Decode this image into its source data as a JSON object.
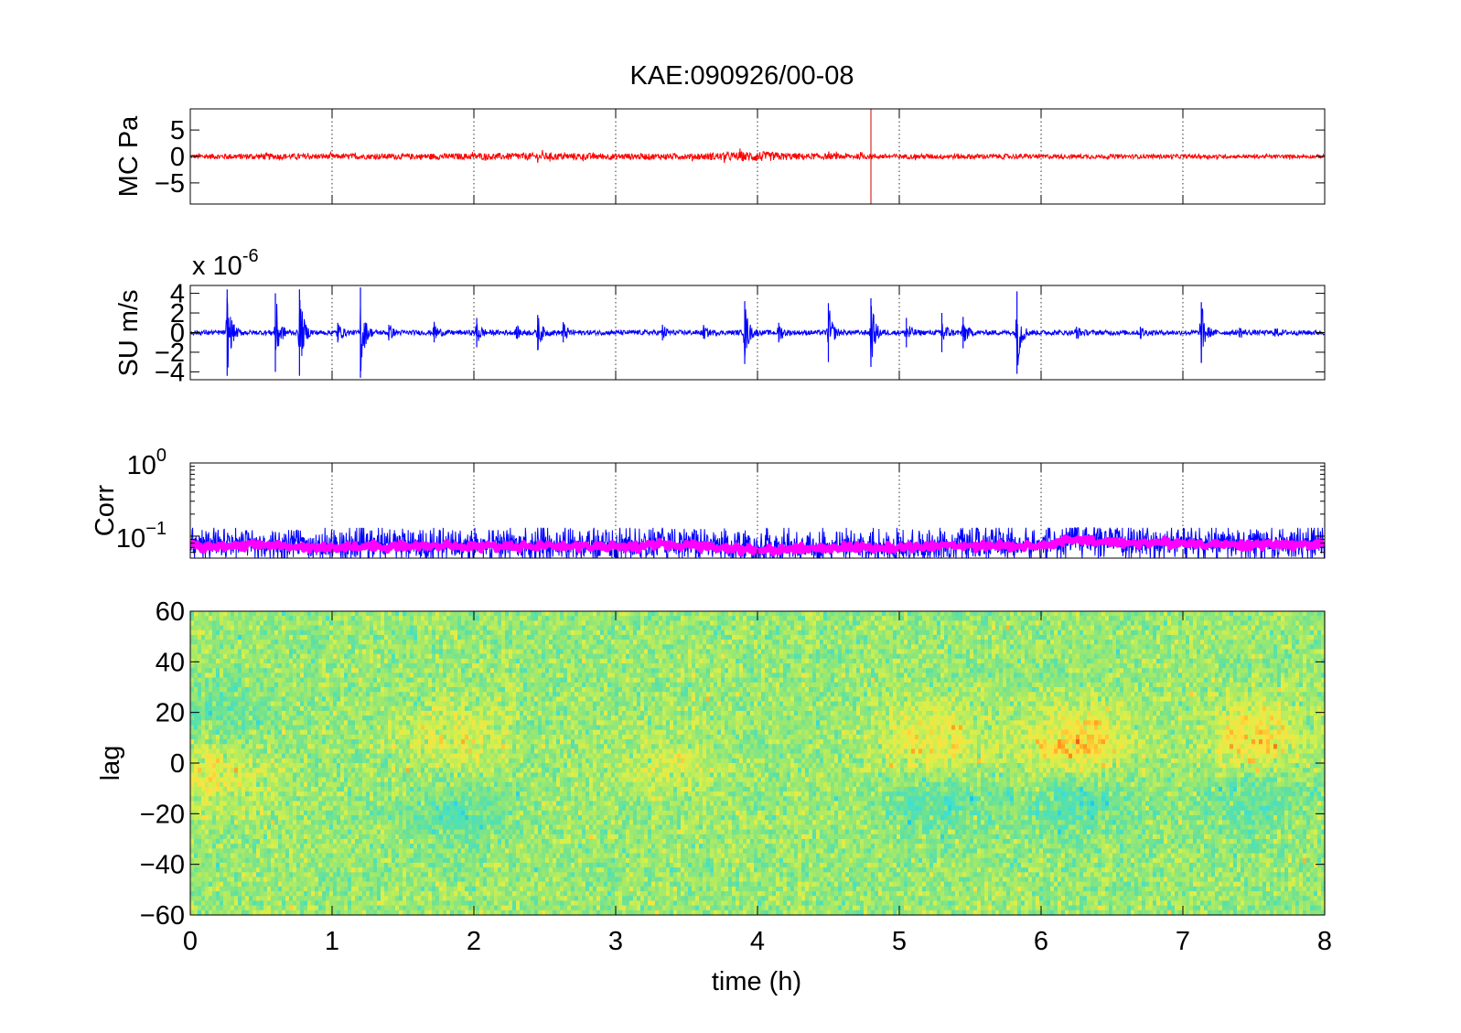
{
  "figure": {
    "title": "KAE:090926/00-08",
    "xlabel": "time (h)"
  },
  "chart_data": [
    {
      "type": "line",
      "panel": "MC",
      "ylabel": "MC Pa",
      "xlim": [
        0,
        8
      ],
      "ylim": [
        -9,
        9
      ],
      "xticks": [
        0,
        1,
        2,
        3,
        4,
        5,
        6,
        7,
        8
      ],
      "yticks": [
        5,
        0,
        -5
      ],
      "ytick_labels": [
        "5",
        "0",
        "−5"
      ],
      "grid": "x-dotted",
      "series": [
        {
          "color": "#ff0000",
          "baseline": 0,
          "noise_envelope": [
            [
              0.0,
              0.45
            ],
            [
              0.5,
              0.6
            ],
            [
              1.0,
              0.5
            ],
            [
              1.5,
              0.55
            ],
            [
              2.0,
              0.6
            ],
            [
              2.5,
              0.7
            ],
            [
              3.0,
              0.6
            ],
            [
              3.5,
              0.55
            ],
            [
              3.9,
              0.9
            ],
            [
              4.0,
              1.0
            ],
            [
              4.3,
              0.6
            ],
            [
              4.8,
              0.5
            ],
            [
              5.0,
              0.45
            ],
            [
              5.5,
              0.5
            ],
            [
              6.0,
              0.45
            ],
            [
              6.5,
              0.4
            ],
            [
              7.0,
              0.4
            ],
            [
              7.5,
              0.35
            ],
            [
              8.0,
              0.35
            ]
          ]
        }
      ],
      "spikes": [
        {
          "x": 4.8,
          "y_min": -9,
          "y_max": 9
        }
      ]
    },
    {
      "type": "line",
      "panel": "SU",
      "ylabel": "SU m/s",
      "exponent_base": "x 10",
      "exponent_power": "-6",
      "xlim": [
        0,
        8
      ],
      "ylim": [
        -4.8,
        4.8
      ],
      "xticks": [
        0,
        1,
        2,
        3,
        4,
        5,
        6,
        7,
        8
      ],
      "yticks": [
        4,
        2,
        0,
        -2,
        -4
      ],
      "ytick_labels": [
        "4",
        "2",
        "0",
        "−2",
        "−4"
      ],
      "grid": "x-dotted",
      "series": [
        {
          "color": "#0000ff",
          "baseline": 0,
          "background_amplitude": 0.25,
          "events": [
            [
              0.26,
              4.4
            ],
            [
              0.6,
              4.0
            ],
            [
              0.77,
              4.4
            ],
            [
              1.04,
              1.0
            ],
            [
              1.2,
              4.6
            ],
            [
              1.4,
              0.8
            ],
            [
              1.72,
              1.0
            ],
            [
              2.02,
              1.5
            ],
            [
              2.3,
              0.6
            ],
            [
              2.45,
              1.8
            ],
            [
              2.63,
              1.0
            ],
            [
              3.33,
              0.8
            ],
            [
              3.62,
              0.6
            ],
            [
              3.91,
              3.2
            ],
            [
              4.15,
              1.0
            ],
            [
              4.5,
              3.0
            ],
            [
              4.8,
              3.5
            ],
            [
              5.05,
              1.5
            ],
            [
              5.3,
              2.0
            ],
            [
              5.45,
              1.6
            ],
            [
              5.83,
              4.2
            ],
            [
              6.25,
              0.6
            ],
            [
              6.7,
              0.6
            ],
            [
              7.13,
              3.1
            ],
            [
              7.4,
              0.5
            ],
            [
              7.65,
              0.4
            ]
          ]
        }
      ]
    },
    {
      "type": "line",
      "panel": "Corr",
      "ylabel": "Corr",
      "yscale": "log",
      "xlim": [
        0,
        8
      ],
      "ylim": [
        0.05,
        1.0
      ],
      "xticks": [
        0,
        1,
        2,
        3,
        4,
        5,
        6,
        7,
        8
      ],
      "yticks": [
        1,
        0.1
      ],
      "ytick_base": "10",
      "ytick_exponents": [
        "0",
        "−1"
      ],
      "grid": "x-dotted",
      "series": [
        {
          "color": "#0000ff",
          "mean_points": [
            [
              0.0,
              0.075
            ],
            [
              0.5,
              0.078
            ],
            [
              1.0,
              0.072
            ],
            [
              1.5,
              0.076
            ],
            [
              2.0,
              0.074
            ],
            [
              2.5,
              0.077
            ],
            [
              3.0,
              0.075
            ],
            [
              3.5,
              0.079
            ],
            [
              4.0,
              0.068
            ],
            [
              4.5,
              0.072
            ],
            [
              5.0,
              0.071
            ],
            [
              5.5,
              0.078
            ],
            [
              6.0,
              0.074
            ],
            [
              6.2,
              0.09
            ],
            [
              6.5,
              0.082
            ],
            [
              7.0,
              0.08
            ],
            [
              7.5,
              0.077
            ],
            [
              8.0,
              0.08
            ]
          ],
          "noise_upper": 0.13,
          "noise_lower": 0.05
        },
        {
          "color": "#ff00ff",
          "mean_points": [
            [
              0.0,
              0.072
            ],
            [
              0.5,
              0.075
            ],
            [
              1.0,
              0.07
            ],
            [
              1.5,
              0.074
            ],
            [
              2.0,
              0.072
            ],
            [
              2.5,
              0.074
            ],
            [
              3.0,
              0.072
            ],
            [
              3.5,
              0.076
            ],
            [
              4.0,
              0.064
            ],
            [
              4.5,
              0.07
            ],
            [
              5.0,
              0.069
            ],
            [
              5.5,
              0.076
            ],
            [
              6.0,
              0.072
            ],
            [
              6.2,
              0.088
            ],
            [
              6.5,
              0.082
            ],
            [
              7.0,
              0.08
            ],
            [
              7.5,
              0.075
            ],
            [
              8.0,
              0.078
            ]
          ]
        }
      ]
    },
    {
      "type": "heatmap",
      "panel": "lag",
      "ylabel": "lag",
      "xlim": [
        0,
        8
      ],
      "ylim": [
        -60,
        60
      ],
      "xticks": [
        0,
        1,
        2,
        3,
        4,
        5,
        6,
        7,
        8
      ],
      "xtick_labels": [
        "0",
        "1",
        "2",
        "3",
        "4",
        "5",
        "6",
        "7",
        "8"
      ],
      "yticks": [
        60,
        40,
        20,
        0,
        -20,
        -40,
        -60
      ],
      "ytick_labels": [
        "60",
        "40",
        "20",
        "0",
        "−20",
        "−40",
        "−60"
      ],
      "colormap": [
        "#00b4ff",
        "#40e0d0",
        "#5fe0a0",
        "#9be870",
        "#d8f04a",
        "#ffe040",
        "#ff9a20",
        "#e02000"
      ],
      "background_level": 0.42,
      "features": [
        {
          "t": 0.2,
          "lag": -5,
          "level": 0.62
        },
        {
          "t": 0.2,
          "lag": 20,
          "level": 0.3
        },
        {
          "t": 1.9,
          "lag": 10,
          "level": 0.6
        },
        {
          "t": 1.9,
          "lag": -20,
          "level": 0.28
        },
        {
          "t": 3.4,
          "lag": 0,
          "level": 0.55
        },
        {
          "t": 5.25,
          "lag": 8,
          "level": 0.68
        },
        {
          "t": 5.3,
          "lag": -15,
          "level": 0.24
        },
        {
          "t": 6.25,
          "lag": 8,
          "level": 0.75
        },
        {
          "t": 6.25,
          "lag": -15,
          "level": 0.22
        },
        {
          "t": 7.5,
          "lag": 10,
          "level": 0.7
        },
        {
          "t": 7.5,
          "lag": -15,
          "level": 0.26
        }
      ]
    }
  ]
}
